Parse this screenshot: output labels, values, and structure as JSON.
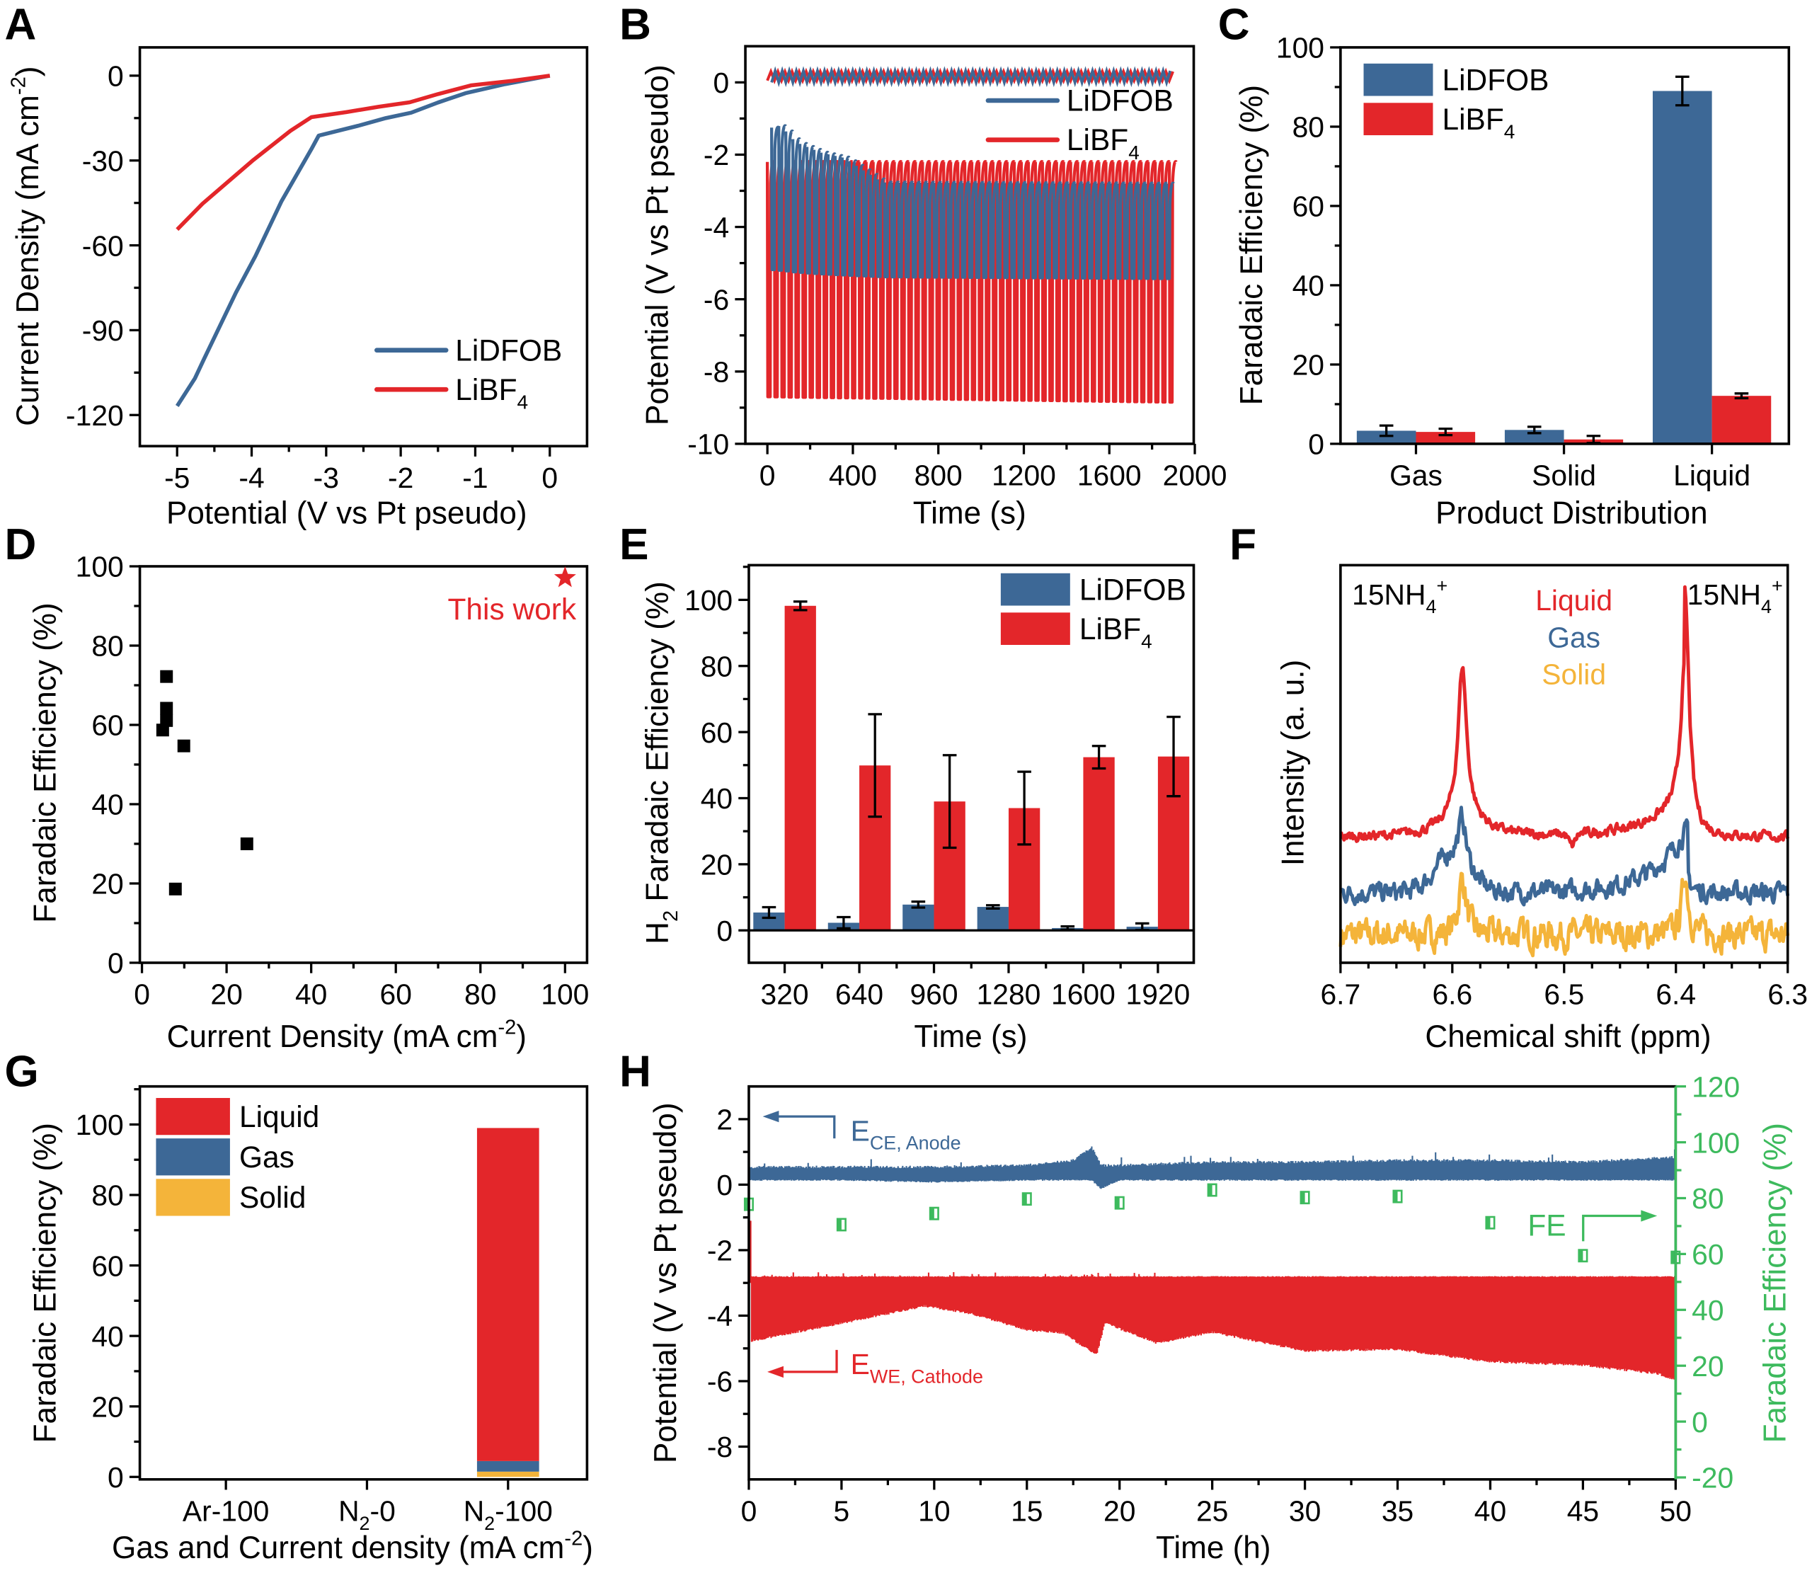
{
  "colors": {
    "blue": "#3d6896",
    "red": "#e3262a",
    "orange": "#f4b43a",
    "green": "#3dba5d",
    "black": "#000000"
  },
  "chart_data": [
    {
      "panel_label": "A",
      "type": "line",
      "xlabel": "Potential (V vs Pt pseudo)",
      "ylabel": "Current Density (mA cm^{-2})",
      "xlim": [
        -5.5,
        0.5
      ],
      "ylim": [
        -131,
        10
      ],
      "xticks": [
        -5,
        -4,
        -3,
        -2,
        -1,
        0
      ],
      "xtick_labels": [
        "-5",
        "-4",
        "-3",
        "-2",
        "-1",
        "0"
      ],
      "yticks": [
        0,
        -30,
        -60,
        -90,
        -120
      ],
      "ytick_labels": [
        "0",
        "-30",
        "-60",
        "-90",
        "-120"
      ],
      "legend": "lower-right",
      "grid": false,
      "series": [
        {
          "name": "LiDFOB",
          "color": "#3d6896",
          "x": [
            -5,
            -4.76,
            -4.63,
            -4.21,
            -3.95,
            -3.6,
            -3.2,
            -3.1,
            -2.57,
            -2.2,
            -1.86,
            -1.5,
            -1.13,
            -0.6,
            0
          ],
          "y": [
            -116.8,
            -107,
            -99.7,
            -76.7,
            -63.8,
            -44.4,
            -26,
            -21.2,
            -17.7,
            -15,
            -13.1,
            -9.5,
            -6.2,
            -3,
            0
          ]
        },
        {
          "name": "LiBF_{4}",
          "color": "#e3262a",
          "x": [
            -5,
            -4.66,
            -3.99,
            -3.48,
            -3.2,
            -2.73,
            -2.3,
            -1.88,
            -1.5,
            -1.05,
            -0.5,
            0
          ],
          "y": [
            -54.4,
            -45.3,
            -30.1,
            -19.5,
            -14.7,
            -12.9,
            -11,
            -9.4,
            -6.5,
            -3.4,
            -1.8,
            0
          ]
        }
      ]
    },
    {
      "panel_label": "B",
      "type": "line",
      "xlabel": "Time (s)",
      "ylabel": "Potential (V vs Pt pseudo)",
      "xlim": [
        -103,
        1995
      ],
      "ylim": [
        -10,
        1
      ],
      "xticks": [
        0,
        400,
        800,
        1200,
        1600,
        2000
      ],
      "xtick_labels": [
        "0",
        "400",
        "800",
        "1200",
        "1600",
        "2000"
      ],
      "yticks": [
        0,
        -2,
        -4,
        -6,
        -8,
        -10
      ],
      "ytick_labels": [
        "0",
        "-2",
        "-4",
        "-6",
        "-8",
        "-10"
      ],
      "legend": "upper-right",
      "pulse_period_s": 33,
      "end_time_s": 1900,
      "series": [
        {
          "name": "LiDFOB",
          "color": "#3d6896",
          "counter_range": [
            0.0,
            0.32
          ],
          "envelope_time": [
            20,
            62,
            131,
            248,
            359,
            538,
            1900
          ],
          "upper": [
            -1.25,
            -1.2,
            -1.65,
            -1.94,
            -2.09,
            -2.77,
            -2.8
          ],
          "lower": [
            -5.18,
            -5.2,
            -5.25,
            -5.3,
            -5.33,
            -5.38,
            -5.43
          ]
        },
        {
          "name": "LiBF_{4}",
          "color": "#e3262a",
          "counter_range": [
            0.05,
            0.3
          ],
          "envelope_time": [
            0,
            1900
          ],
          "upper": [
            -2.2,
            -2.2
          ],
          "lower": [
            -8.7,
            -8.85
          ]
        }
      ]
    },
    {
      "panel_label": "C",
      "type": "bar",
      "xlabel": "Product Distribution",
      "ylabel": "Faradaic Efficiency (%)",
      "categories": [
        "Gas",
        "Solid",
        "Liquid"
      ],
      "ylim": [
        0,
        100
      ],
      "yticks": [
        0,
        20,
        40,
        60,
        80,
        100
      ],
      "ytick_labels": [
        "0",
        "20",
        "40",
        "60",
        "80",
        "100"
      ],
      "legend": "upper-left",
      "series": [
        {
          "name": "LiDFOB",
          "color": "#3d6896",
          "values": [
            3.3,
            3.5,
            89
          ],
          "errors": [
            1.3,
            0.8,
            3.6
          ]
        },
        {
          "name": "LiBF_{4}",
          "color": "#e3262a",
          "values": [
            3.0,
            1.1,
            12.1
          ],
          "errors": [
            0.8,
            0.9,
            0.6
          ]
        }
      ]
    },
    {
      "panel_label": "D",
      "type": "scatter",
      "xlabel": "Current Density (mA cm^{-2})",
      "ylabel": "Faradaic Efficiency (%)",
      "xlim": [
        -0.5,
        105.2
      ],
      "ylim": [
        0,
        100
      ],
      "xticks": [
        0,
        20,
        40,
        60,
        80,
        100
      ],
      "xtick_labels": [
        "0",
        "20",
        "40",
        "60",
        "80",
        "100"
      ],
      "yticks": [
        0,
        20,
        40,
        60,
        80,
        100
      ],
      "ytick_labels": [
        "0",
        "20",
        "40",
        "60",
        "80",
        "100"
      ],
      "series": [
        {
          "marker": "square",
          "color": "#000000",
          "x": [
            5.8,
            5.8,
            5.8,
            4.9,
            9.9,
            7.9,
            24.8
          ],
          "y": [
            72.2,
            64.2,
            61.1,
            58.7,
            54.7,
            18.6,
            30
          ]
        },
        {
          "marker": "star",
          "color": "#e3262a",
          "x": [
            100
          ],
          "y": [
            97.1
          ]
        }
      ],
      "annotations": [
        {
          "text": "This work",
          "color": "#e3262a"
        }
      ]
    },
    {
      "panel_label": "E",
      "type": "bar",
      "xlabel": "Time (s)",
      "ylabel": "H_{2} Faradaic Efficiency (%)",
      "categories": [
        "320",
        "640",
        "960",
        "1280",
        "1600",
        "1920"
      ],
      "ylim": [
        -9.8,
        110.5
      ],
      "yticks": [
        0,
        20,
        40,
        60,
        80,
        100
      ],
      "ytick_labels": [
        "0",
        "20",
        "40",
        "60",
        "80",
        "100"
      ],
      "legend": "upper-right",
      "series": [
        {
          "name": "LiDFOB",
          "color": "#3d6896",
          "values": [
            5.4,
            2.3,
            7.8,
            7.1,
            0.7,
            1.1
          ],
          "errors": [
            1.6,
            1.7,
            0.9,
            0.5,
            0.5,
            1.0
          ]
        },
        {
          "name": "LiBF_{4}",
          "color": "#e3262a",
          "values": [
            98.2,
            49.9,
            39.0,
            37.0,
            52.4,
            52.6
          ],
          "errors": [
            1.3,
            15.5,
            14.0,
            11.0,
            3.4,
            12.0
          ]
        }
      ]
    },
    {
      "panel_label": "F",
      "type": "line",
      "xlabel": "Chemical shift (ppm)",
      "ylabel": "Intensity (a. u.)",
      "xlim": [
        6.7,
        6.3
      ],
      "ylim": [
        0,
        1
      ],
      "xticks": [
        6.7,
        6.6,
        6.5,
        6.4,
        6.3
      ],
      "xtick_labels": [
        "6.7",
        "6.6",
        "6.5",
        "6.4",
        "6.3"
      ],
      "peaks_ppm": [
        6.591,
        6.392
      ],
      "peak_labels": [
        "15NH_{4}^{+}",
        "15NH_{4}^{+}"
      ],
      "series": [
        {
          "name": "Liquid",
          "color": "#e3262a",
          "baseline": 0.315,
          "peak_intensity": [
            0.93,
            0.91
          ]
        },
        {
          "name": "Gas",
          "color": "#3d6896",
          "baseline": 0.176,
          "peak_intensity": [
            0.38,
            0.35
          ]
        },
        {
          "name": "Solid",
          "color": "#f4b43a",
          "baseline": 0.07,
          "peak_intensity": [
            0.21,
            0.23
          ]
        }
      ]
    },
    {
      "panel_label": "G",
      "type": "bar",
      "xlabel": "Gas and Current density (mA cm^{-2})",
      "ylabel": "Faradaic Efficiency (%)",
      "categories": [
        "Ar-100",
        "N_{2}-0",
        "N_{2}-100"
      ],
      "ylim": [
        -0.7,
        110.8
      ],
      "yticks": [
        0,
        20,
        40,
        60,
        80,
        100
      ],
      "ytick_labels": [
        "0",
        "20",
        "40",
        "60",
        "80",
        "100"
      ],
      "stacked": true,
      "legend": "upper-left",
      "series": [
        {
          "name": "Liquid",
          "color": "#e3262a",
          "values": [
            0,
            0,
            94.5
          ]
        },
        {
          "name": "Gas",
          "color": "#3d6896",
          "values": [
            0,
            0,
            3.0
          ]
        },
        {
          "name": "Solid",
          "color": "#f4b43a",
          "values": [
            0,
            0,
            1.5
          ]
        }
      ]
    },
    {
      "panel_label": "H",
      "type": "line",
      "xlabel": "Time (h)",
      "ylabel": "Potential (V vs Pt pseudo)",
      "y2label": "Faradaic Efficiency (%)",
      "xlim": [
        0,
        50
      ],
      "ylim": [
        -9,
        3
      ],
      "y2lim": [
        -20.7,
        120
      ],
      "xticks": [
        0,
        5,
        10,
        15,
        20,
        25,
        30,
        35,
        40,
        45,
        50
      ],
      "xtick_labels": [
        "0",
        "5",
        "10",
        "15",
        "20",
        "25",
        "30",
        "35",
        "40",
        "45",
        "50"
      ],
      "yticks": [
        2,
        0,
        -2,
        -4,
        -6,
        -8
      ],
      "ytick_labels": [
        "2",
        "0",
        "-2",
        "-4",
        "-6",
        "-8"
      ],
      "y2ticks": [
        -20,
        0,
        20,
        40,
        60,
        80,
        100,
        120
      ],
      "y2tick_labels": [
        "-20",
        "0",
        "20",
        "40",
        "60",
        "80",
        "100",
        "120"
      ],
      "series": [
        {
          "name": "E_{CE, Anode}",
          "color": "#3d6896",
          "axis": "left",
          "envelope_time": [
            0,
            5,
            10,
            15,
            17.5,
            18.5,
            19,
            20,
            25,
            30,
            35,
            40,
            45,
            50
          ],
          "upper": [
            0.55,
            0.55,
            0.55,
            0.6,
            0.75,
            1.15,
            0.6,
            0.6,
            0.7,
            0.7,
            0.75,
            0.75,
            0.7,
            0.85
          ],
          "lower": [
            0.16,
            0.16,
            0.1,
            0.16,
            0.16,
            0.16,
            -0.1,
            0.16,
            0.16,
            0.16,
            0.16,
            0.16,
            0.16,
            0.16
          ]
        },
        {
          "name": "E_{WE, Cathode}",
          "color": "#e3262a",
          "axis": "left",
          "initial_spike": -1.1,
          "envelope_time": [
            0,
            5,
            9.5,
            12,
            15,
            17,
            18.5,
            18.8,
            19.2,
            22,
            25,
            30,
            35,
            40,
            45,
            49,
            50
          ],
          "upper": [
            -2.82,
            -2.82,
            -2.82,
            -2.82,
            -2.82,
            -2.82,
            -2.82,
            -2.82,
            -2.82,
            -2.82,
            -2.82,
            -2.82,
            -2.82,
            -2.82,
            -2.82,
            -2.82,
            -2.82
          ],
          "lower": [
            -4.75,
            -4.2,
            -3.67,
            -3.9,
            -4.4,
            -4.5,
            -5.08,
            -5.1,
            -4.19,
            -4.8,
            -4.47,
            -5.04,
            -5.0,
            -5.37,
            -5.48,
            -5.73,
            -5.93
          ]
        },
        {
          "name": "FE",
          "color": "#3dba5d",
          "axis": "right",
          "marker": "half-filled-square",
          "x": [
            0,
            5,
            10,
            15,
            20,
            25,
            30,
            35,
            40,
            45,
            50
          ],
          "y": [
            77.8,
            70.5,
            74.5,
            79.7,
            78.3,
            82.9,
            80.2,
            80.6,
            71.2,
            59.4,
            58.8
          ]
        }
      ]
    }
  ]
}
